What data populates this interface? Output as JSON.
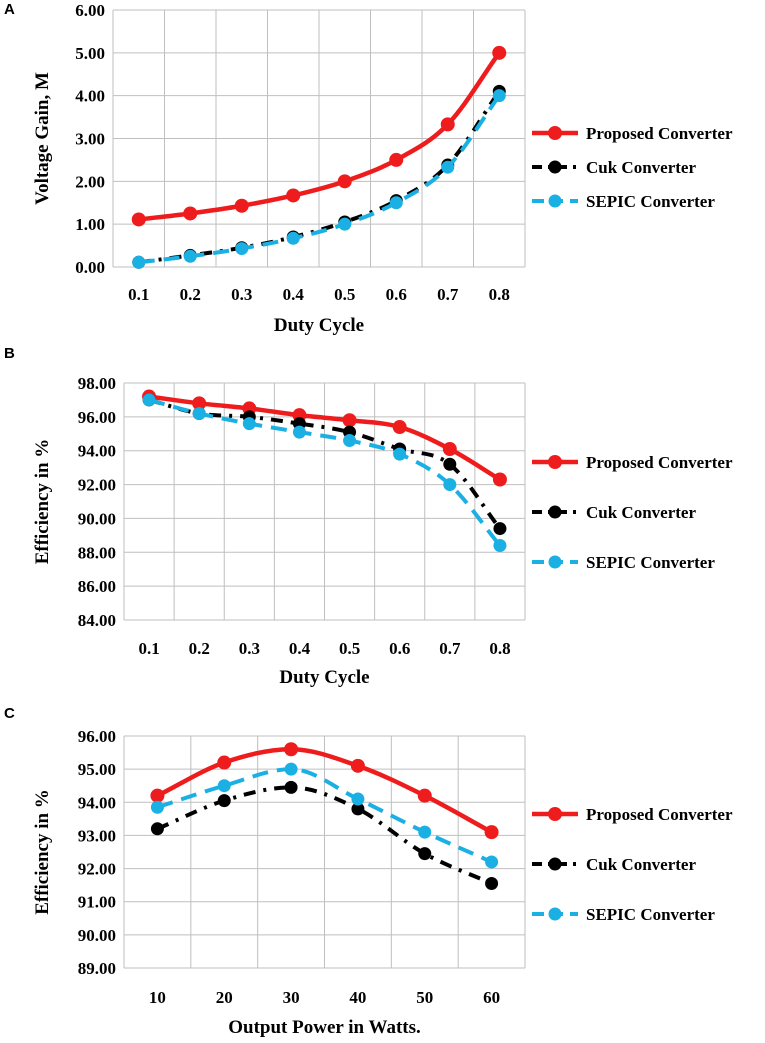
{
  "chart_data": [
    {
      "type": "line",
      "panel_label": "A",
      "xlabel": "Duty Cycle",
      "ylabel": "Voltage Gain, M",
      "categories": [
        "0.1",
        "0.2",
        "0.3",
        "0.4",
        "0.5",
        "0.6",
        "0.7",
        "0.8"
      ],
      "yticks": [
        "0.00",
        "1.00",
        "2.00",
        "3.00",
        "4.00",
        "5.00",
        "6.00"
      ],
      "ylim": [
        0,
        6
      ],
      "series": [
        {
          "name": "Proposed Converter",
          "values": [
            1.11,
            1.25,
            1.43,
            1.67,
            2.0,
            2.5,
            3.33,
            5.0
          ]
        },
        {
          "name": "Cuk Converter",
          "values": [
            0.11,
            0.27,
            0.45,
            0.7,
            1.05,
            1.55,
            2.38,
            4.1
          ]
        },
        {
          "name": "SEPIC Converter",
          "values": [
            0.11,
            0.25,
            0.43,
            0.67,
            1.0,
            1.5,
            2.33,
            4.0
          ]
        }
      ]
    },
    {
      "type": "line",
      "panel_label": "B",
      "xlabel": "Duty Cycle",
      "ylabel": "Efficiency in %",
      "categories": [
        "0.1",
        "0.2",
        "0.3",
        "0.4",
        "0.5",
        "0.6",
        "0.7",
        "0.8"
      ],
      "yticks": [
        "84.00",
        "86.00",
        "88.00",
        "90.00",
        "92.00",
        "94.00",
        "96.00",
        "98.00"
      ],
      "ylim": [
        84,
        98
      ],
      "series": [
        {
          "name": "Proposed Converter",
          "values": [
            97.2,
            96.8,
            96.5,
            96.1,
            95.8,
            95.4,
            94.1,
            92.3
          ]
        },
        {
          "name": "Cuk Converter",
          "values": [
            97.0,
            96.2,
            96.0,
            95.6,
            95.1,
            94.1,
            93.2,
            89.4
          ]
        },
        {
          "name": "SEPIC Converter",
          "values": [
            97.0,
            96.2,
            95.6,
            95.1,
            94.6,
            93.8,
            92.0,
            88.4
          ]
        }
      ]
    },
    {
      "type": "line",
      "panel_label": "C",
      "xlabel": "Output Power in Watts.",
      "ylabel": "Efficiency in %",
      "categories": [
        "10",
        "20",
        "30",
        "40",
        "50",
        "60"
      ],
      "yticks": [
        "89.00",
        "90.00",
        "91.00",
        "92.00",
        "93.00",
        "94.00",
        "95.00",
        "96.00"
      ],
      "ylim": [
        89,
        96
      ],
      "series": [
        {
          "name": "Proposed Converter",
          "values": [
            94.2,
            95.2,
            95.6,
            95.1,
            94.2,
            93.1
          ]
        },
        {
          "name": "Cuk Converter",
          "values": [
            93.2,
            94.05,
            94.45,
            93.8,
            92.45,
            91.55
          ]
        },
        {
          "name": "SEPIC Converter",
          "values": [
            93.85,
            94.5,
            95.0,
            94.1,
            93.1,
            92.2
          ]
        }
      ]
    }
  ],
  "colors": {
    "proposed": "#ee1c1c",
    "cuk": "#000000",
    "sepic": "#1bb0e4",
    "grid": "#bfbfbf"
  }
}
